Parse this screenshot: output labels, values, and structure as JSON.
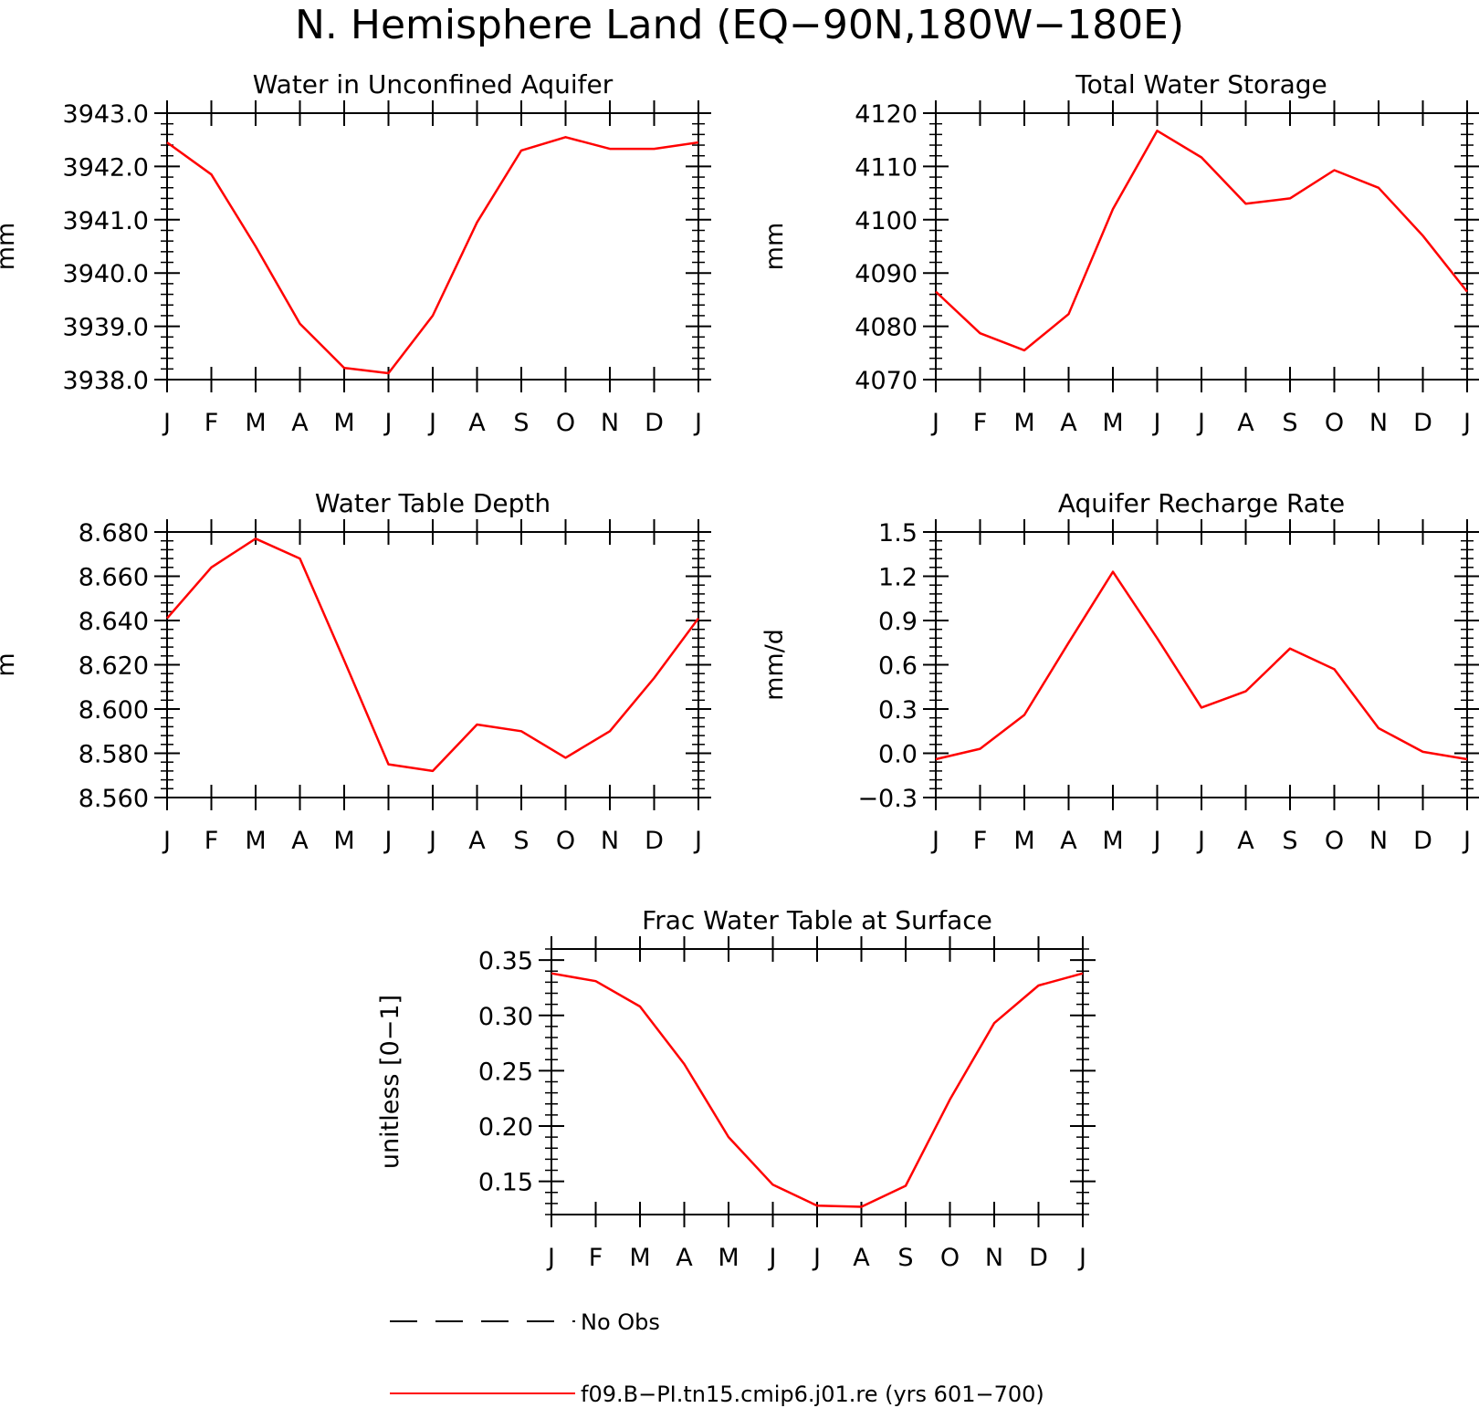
{
  "figure": {
    "title": "N. Hemisphere Land (EQ−90N,180W−180E)"
  },
  "legend": {
    "items": [
      {
        "label": "No Obs",
        "color": "#000000",
        "style": "dashed"
      },
      {
        "label": "f09.B−PI.tn15.cmip6.j01.re (yrs 601−700)",
        "color": "#ff0000",
        "style": "solid"
      }
    ]
  },
  "chart_data": [
    {
      "type": "line",
      "title": "Water in Unconfined Aquifer",
      "ylabel": "mm",
      "xlabel": "",
      "categories": [
        "J",
        "F",
        "M",
        "A",
        "M",
        "J",
        "J",
        "A",
        "S",
        "O",
        "N",
        "D",
        "J"
      ],
      "ylim": [
        3938.0,
        3943.0
      ],
      "yticks": [
        3938.0,
        3939.0,
        3940.0,
        3941.0,
        3942.0,
        3943.0
      ],
      "ytick_labels": [
        "3938.0",
        "3939.0",
        "3940.0",
        "3941.0",
        "3942.0",
        "3943.0"
      ],
      "grid": false,
      "series": [
        {
          "name": "f09.B−PI.tn15.cmip6.j01.re (yrs 601−700)",
          "color": "#ff0000",
          "values": [
            3942.45,
            3941.85,
            3940.5,
            3939.05,
            3938.22,
            3938.12,
            3939.2,
            3940.95,
            3942.3,
            3942.55,
            3942.33,
            3942.33,
            3942.45
          ]
        }
      ]
    },
    {
      "type": "line",
      "title": "Total Water Storage",
      "ylabel": "mm",
      "xlabel": "",
      "categories": [
        "J",
        "F",
        "M",
        "A",
        "M",
        "J",
        "J",
        "A",
        "S",
        "O",
        "N",
        "D",
        "J"
      ],
      "ylim": [
        4070,
        4120
      ],
      "yticks": [
        4070,
        4080,
        4090,
        4100,
        4110,
        4120
      ],
      "ytick_labels": [
        "4070",
        "4080",
        "4090",
        "4100",
        "4110",
        "4120"
      ],
      "grid": false,
      "series": [
        {
          "name": "f09.B−PI.tn15.cmip6.j01.re (yrs 601−700)",
          "color": "#ff0000",
          "values": [
            4086.5,
            4078.7,
            4075.5,
            4082.3,
            4102.0,
            4116.7,
            4111.7,
            4103.0,
            4104.0,
            4109.3,
            4106.0,
            4097.0,
            4086.5
          ]
        }
      ]
    },
    {
      "type": "line",
      "title": "Water Table Depth",
      "ylabel": "m",
      "xlabel": "",
      "categories": [
        "J",
        "F",
        "M",
        "A",
        "M",
        "J",
        "J",
        "A",
        "S",
        "O",
        "N",
        "D",
        "J"
      ],
      "ylim": [
        8.56,
        8.68
      ],
      "yticks": [
        8.56,
        8.58,
        8.6,
        8.62,
        8.64,
        8.66,
        8.68
      ],
      "ytick_labels": [
        "8.560",
        "8.580",
        "8.600",
        "8.620",
        "8.640",
        "8.660",
        "8.680"
      ],
      "grid": false,
      "series": [
        {
          "name": "f09.B−PI.tn15.cmip6.j01.re (yrs 601−700)",
          "color": "#ff0000",
          "values": [
            8.641,
            8.664,
            8.677,
            8.668,
            8.622,
            8.575,
            8.572,
            8.593,
            8.59,
            8.578,
            8.59,
            8.614,
            8.641
          ]
        }
      ]
    },
    {
      "type": "line",
      "title": "Aquifer Recharge Rate",
      "ylabel": "mm/d",
      "xlabel": "",
      "categories": [
        "J",
        "F",
        "M",
        "A",
        "M",
        "J",
        "J",
        "A",
        "S",
        "O",
        "N",
        "D",
        "J"
      ],
      "ylim": [
        -0.3,
        1.5
      ],
      "yticks": [
        -0.3,
        0.0,
        0.3,
        0.6,
        0.9,
        1.2,
        1.5
      ],
      "ytick_labels": [
        "−0.3",
        "0.0",
        "0.3",
        "0.6",
        "0.9",
        "1.2",
        "1.5"
      ],
      "grid": false,
      "series": [
        {
          "name": "f09.B−PI.tn15.cmip6.j01.re (yrs 601−700)",
          "color": "#ff0000",
          "values": [
            -0.04,
            0.03,
            0.26,
            0.75,
            1.23,
            0.78,
            0.31,
            0.42,
            0.71,
            0.57,
            0.17,
            0.01,
            -0.04
          ]
        }
      ]
    },
    {
      "type": "line",
      "title": "Frac Water Table at Surface",
      "ylabel": "unitless [0−1]",
      "xlabel": "",
      "categories": [
        "J",
        "F",
        "M",
        "A",
        "M",
        "J",
        "J",
        "A",
        "S",
        "O",
        "N",
        "D",
        "J"
      ],
      "ylim": [
        0.12,
        0.36
      ],
      "yticks": [
        0.15,
        0.2,
        0.25,
        0.3,
        0.35
      ],
      "ytick_labels": [
        "0.15",
        "0.20",
        "0.25",
        "0.30",
        "0.35"
      ],
      "grid": false,
      "series": [
        {
          "name": "f09.B−PI.tn15.cmip6.j01.re (yrs 601−700)",
          "color": "#ff0000",
          "values": [
            0.338,
            0.331,
            0.308,
            0.256,
            0.19,
            0.147,
            0.128,
            0.127,
            0.146,
            0.224,
            0.293,
            0.327,
            0.338
          ]
        }
      ]
    }
  ]
}
